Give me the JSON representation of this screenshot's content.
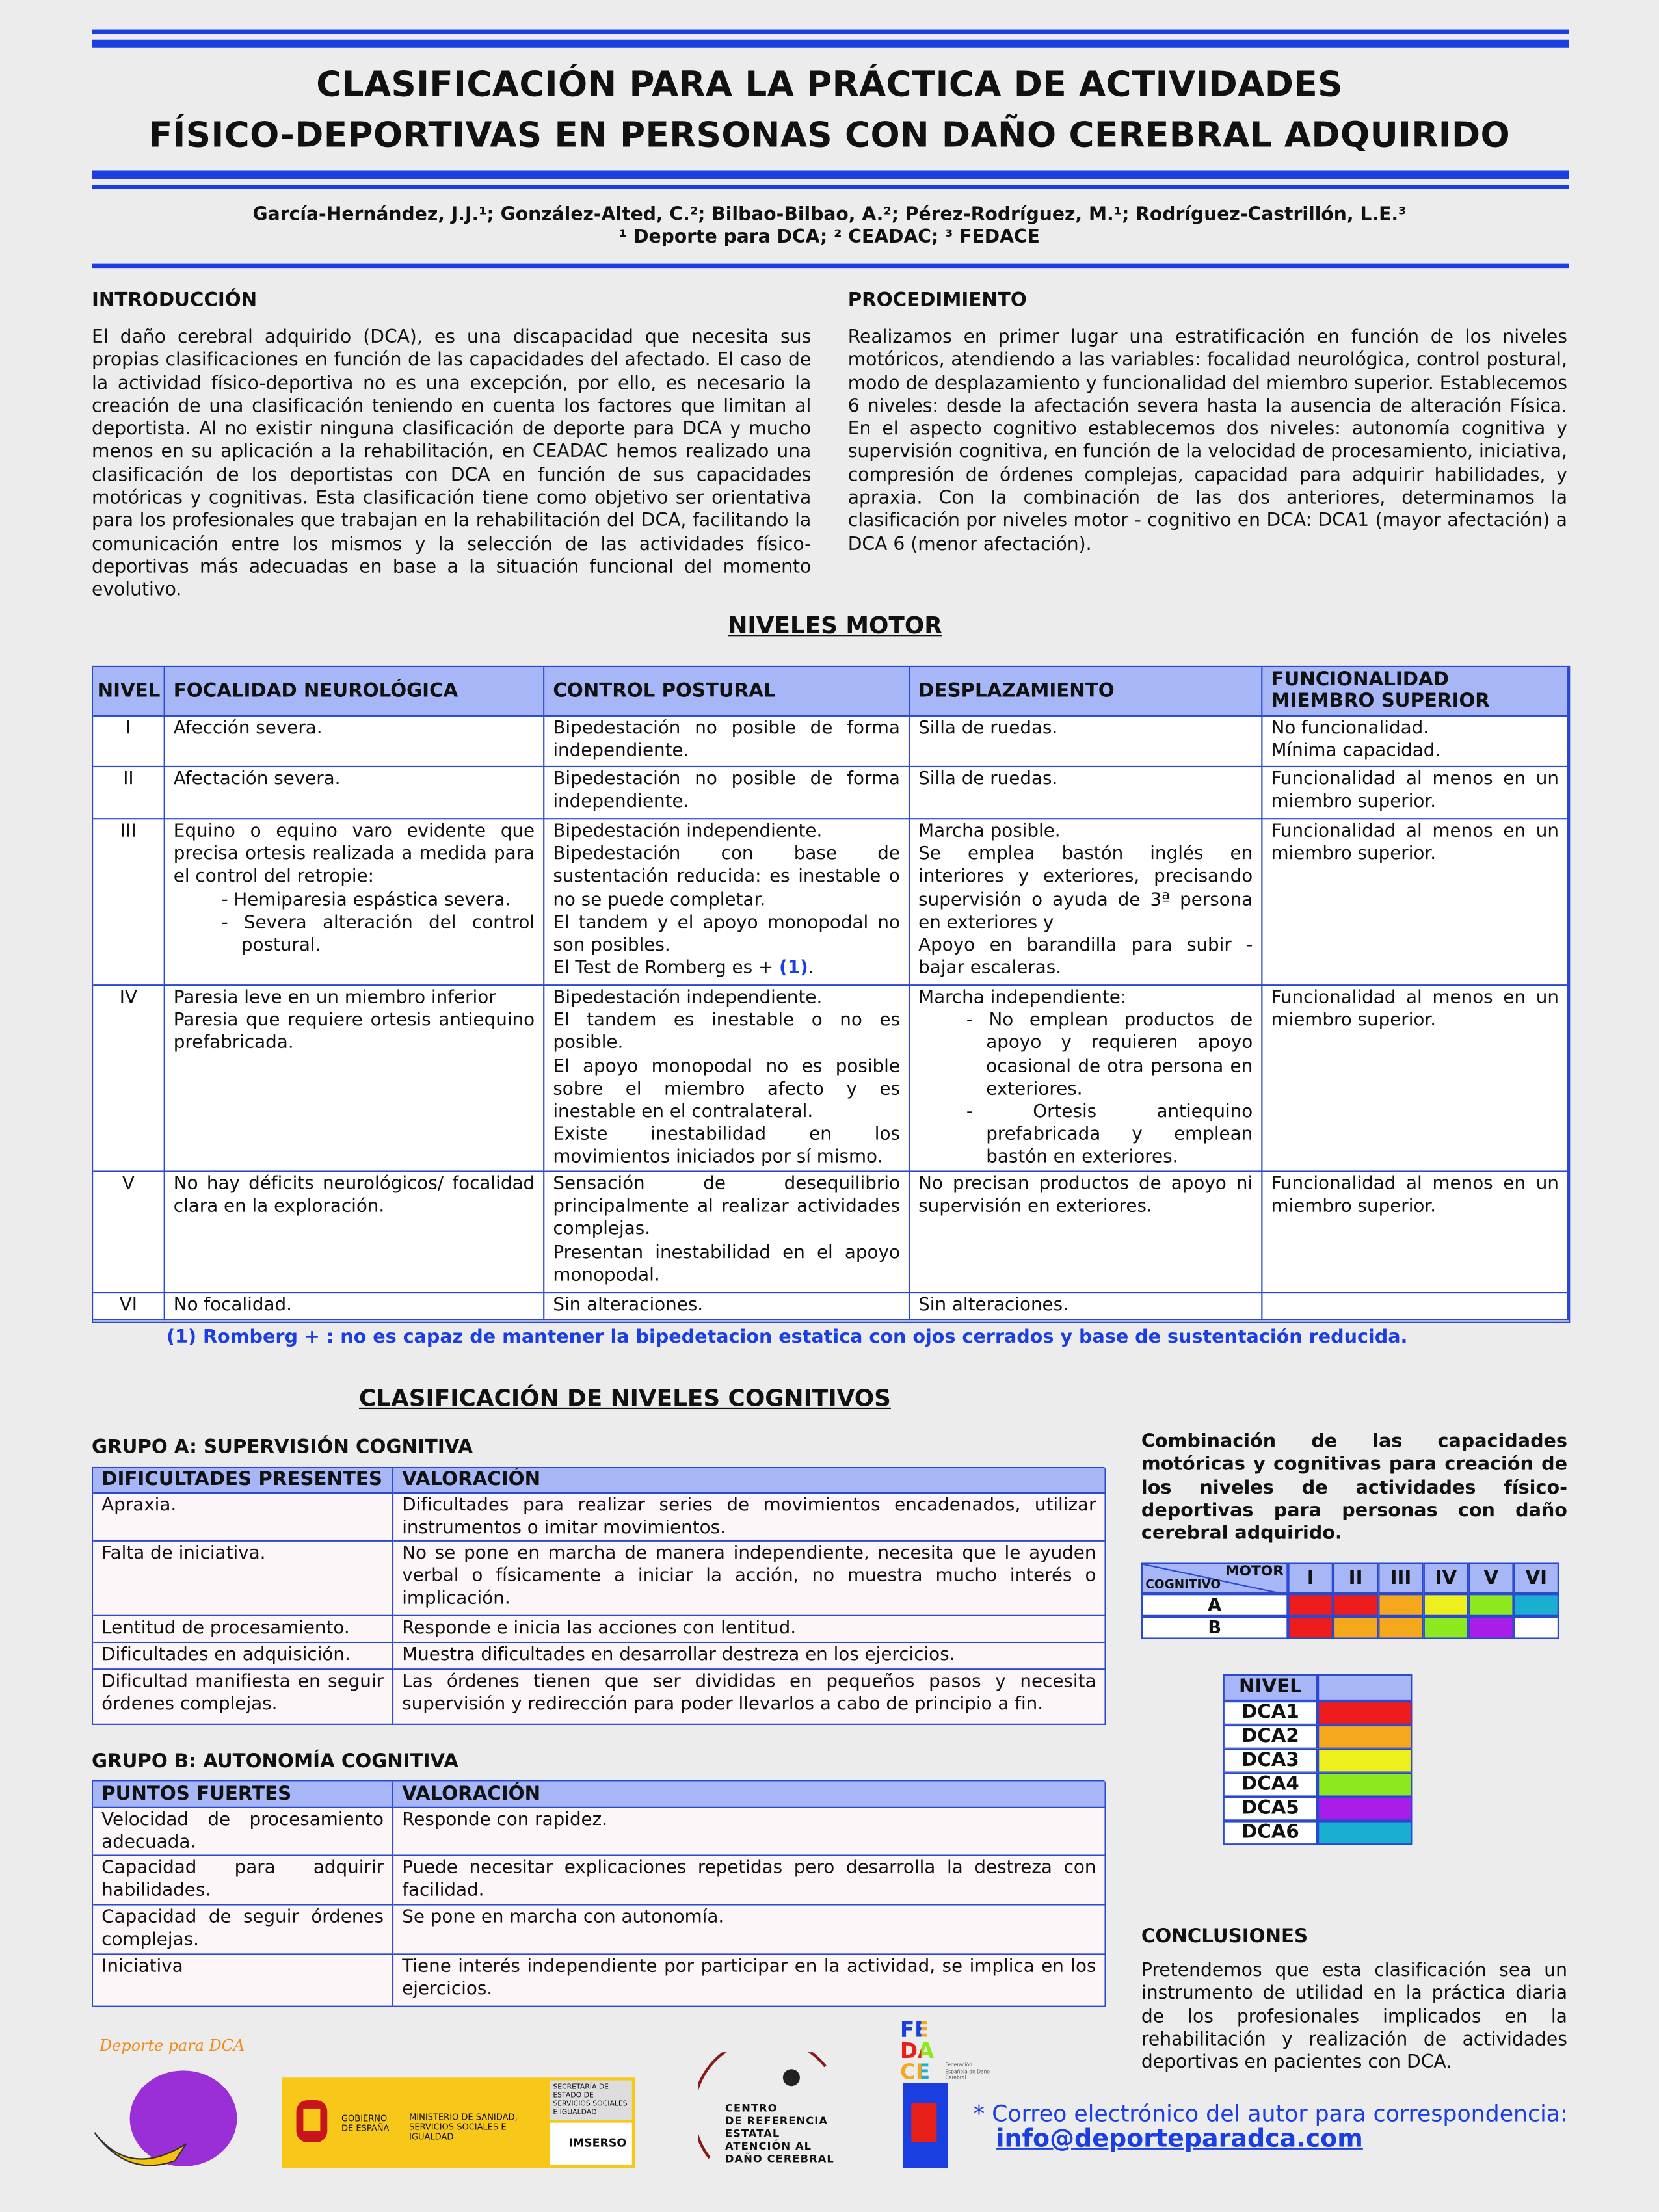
{
  "header": {
    "title_line1": "CLASIFICACIÓN PARA LA PRÁCTICA DE ACTIVIDADES",
    "title_line2": "FÍSICO-DEPORTIVAS EN PERSONAS CON DAÑO CEREBRAL ADQUIRIDO",
    "authors": "García-Hernández, J.J.¹; González-Alted, C.²; Bilbao-Bilbao, A.²; Pérez-Rodríguez, M.¹; Rodríguez-Castrillón, L.E.³",
    "affiliations": "¹ Deporte para DCA; ² CEADAC; ³ FEDACE"
  },
  "introduccion": {
    "heading": "INTRODUCCIÓN",
    "text": "El daño cerebral adquirido (DCA), es una discapacidad que necesita sus propias clasificaciones en función de las capacidades del afectado. El caso de la actividad físico-deportiva no es una excepción, por ello, es necesario la creación de una clasificación teniendo en cuenta los factores que limitan al deportista. Al no existir ninguna clasificación de deporte para DCA y mucho menos en su aplicación a la rehabilitación, en CEADAC hemos realizado una clasificación de los deportistas con DCA en función de sus capacidades motóricas y cognitivas. Esta clasificación tiene como objetivo ser orientativa para los profesionales que trabajan en la rehabilitación del DCA, facilitando la comunicación entre los mismos y la selección de las actividades físico-deportivas más adecuadas en base a la situación funcional del momento evolutivo."
  },
  "procedimiento": {
    "heading": "PROCEDIMIENTO",
    "text": "Realizamos en primer lugar una estratificación en función de los niveles motóricos, atendiendo a las variables: focalidad neurológica, control postural, modo de desplazamiento y funcionalidad del miembro superior. Establecemos 6 niveles: desde la afectación severa hasta la ausencia de alteración Física. En el aspecto cognitivo establecemos dos niveles: autonomía cognitiva y supervisión cognitiva, en función de la velocidad de procesamiento, iniciativa, compresión de órdenes complejas, capacidad para adquirir habilidades, y apraxia. Con la combinación de las dos anteriores, determinamos la clasificación por niveles motor - cognitivo en DCA: DCA1 (mayor afectación) a DCA 6 (menor afectación)."
  },
  "niveles_motor": {
    "heading": "NIVELES MOTOR",
    "columns": [
      "NIVEL",
      "FOCALIDAD NEUROLÓGICA",
      "CONTROL POSTURAL",
      "DESPLAZAMIENTO",
      "FUNCIONALIDAD MIEMBRO SUPERIOR"
    ],
    "rows": [
      {
        "nivel": "I",
        "cells": [
          [
            "Afección severa."
          ],
          [
            "Bipedestación no posible de forma independiente."
          ],
          [
            "Silla de ruedas."
          ],
          [
            "No funcionalidad.",
            "Mínima capacidad."
          ]
        ]
      },
      {
        "nivel": "II",
        "cells": [
          [
            "Afectación severa."
          ],
          [
            "Bipedestación no posible de forma independiente."
          ],
          [
            "Silla de ruedas."
          ],
          [
            "Funcionalidad al menos en un miembro superior."
          ]
        ]
      },
      {
        "nivel": "III",
        "cells": [
          [
            "Equino o equino varo evidente que precisa ortesis realizada a medida para el control del retropie:",
            {
              "list": [
                "- Hemiparesia espástica severa.",
                "- Severa alteración del control postural."
              ]
            }
          ],
          [
            "Bipedestación independiente.",
            "Bipedestación con base de sustentación reducida: es inestable o no se puede completar.",
            "El tandem y el apoyo monopodal no son posibles.",
            {
              "text": "El Test de Romberg es +",
              "note": "(1)",
              "end": "."
            }
          ],
          [
            "Marcha posible.",
            "Se emplea bastón inglés en interiores y exteriores, precisando supervisión o ayuda de 3ª persona en exteriores y",
            "Apoyo en barandilla para subir - bajar escaleras."
          ],
          [
            "Funcionalidad al menos en un miembro superior."
          ]
        ]
      },
      {
        "nivel": "IV",
        "cells": [
          [
            "Paresia leve en un miembro inferior",
            "Paresia que requiere ortesis antiequino prefabricada."
          ],
          [
            "Bipedestación independiente.",
            "El tandem es inestable o no es posible.",
            "El apoyo monopodal no es posible sobre el miembro afecto y es inestable en el contralateral.",
            "Existe inestabilidad en los movimientos iniciados por sí mismo."
          ],
          [
            "Marcha independiente:",
            {
              "list": [
                "- No emplean productos de apoyo y requieren apoyo ocasional de otra persona en exteriores.",
                "- Ortesis antiequino prefabricada y emplean bastón en exteriores."
              ]
            }
          ],
          [
            "Funcionalidad al menos en un miembro superior."
          ]
        ]
      },
      {
        "nivel": "V",
        "cells": [
          [
            "No hay déficits neurológicos/ focalidad clara en la exploración."
          ],
          [
            "Sensación de desequilibrio principalmente al realizar actividades complejas.",
            "Presentan inestabilidad en el apoyo monopodal."
          ],
          [
            "No precisan productos de apoyo ni supervisión en exteriores."
          ],
          [
            "Funcionalidad al menos en un miembro superior."
          ]
        ]
      },
      {
        "nivel": "VI",
        "cells": [
          [
            "No focalidad."
          ],
          [
            "Sin alteraciones."
          ],
          [
            "Sin alteraciones."
          ],
          []
        ]
      }
    ],
    "footnote": "(1) Romberg + : no es capaz de mantener la bipedetacion estatica con ojos cerrados y base de sustentación reducida."
  },
  "cognitivos": {
    "heading": "CLASIFICACIÓN DE NIVELES COGNITIVOS",
    "grupo_a": {
      "title": "GRUPO A: SUPERVISIÓN COGNITIVA",
      "columns": [
        "DIFICULTADES PRESENTES",
        "VALORACIÓN"
      ],
      "rows": [
        [
          "Apraxia.",
          "Dificultades para realizar series de movimientos encadenados, utilizar instrumentos o imitar movimientos."
        ],
        [
          "Falta de iniciativa.",
          "No se pone en marcha de manera independiente, necesita que le ayuden verbal o físicamente a iniciar la acción, no muestra mucho interés o implicación."
        ],
        [
          "Lentitud de procesamiento.",
          "Responde e inicia las acciones con lentitud."
        ],
        [
          "Dificultades en adquisición.",
          "Muestra dificultades en desarrollar destreza en los ejercicios."
        ],
        [
          "Dificultad manifiesta en seguir órdenes complejas.",
          "Las órdenes tienen que ser divididas en pequeños pasos y necesita supervisión y redirección para poder llevarlos a cabo de principio a fin."
        ]
      ]
    },
    "grupo_b": {
      "title": "GRUPO B:  AUTONOMÍA COGNITIVA",
      "columns": [
        "PUNTOS FUERTES",
        "VALORACIÓN"
      ],
      "rows": [
        [
          "Velocidad de procesamiento adecuada.",
          "Responde con rapidez."
        ],
        [
          "Capacidad para adquirir habilidades.",
          "Puede necesitar explicaciones repetidas pero desarrolla la destreza con facilidad."
        ],
        [
          "Capacidad de seguir órdenes complejas.",
          "Se pone en marcha con autonomía."
        ],
        [
          "Iniciativa",
          "Tiene interés independiente por participar en la actividad, se implica en los ejercicios."
        ]
      ]
    }
  },
  "combinacion": {
    "text": "Combinación de las capacidades motóricas y cognitivas para creación de los niveles de actividades físico-deportivas para personas con daño cerebral adquirido.",
    "corner_motor": "MOTOR",
    "corner_cognitivo": "COGNITIVO",
    "columns": [
      "I",
      "II",
      "III",
      "IV",
      "V",
      "VI"
    ],
    "rows": [
      {
        "label": "A",
        "colors": [
          "#ee1c1c",
          "#ee1c1c",
          "#f5a81c",
          "#eef01e",
          "#8ee81e",
          "#1aaed0"
        ]
      },
      {
        "label": "B",
        "colors": [
          "#ee1c1c",
          "#f5a81c",
          "#f5a81c",
          "#8ee81e",
          "#a81ee8",
          "#ffffff"
        ]
      }
    ]
  },
  "nivel_legend": {
    "header": "NIVEL",
    "items": [
      {
        "label": "DCA1",
        "color": "#ee1c1c"
      },
      {
        "label": "DCA2",
        "color": "#f5a81c"
      },
      {
        "label": "DCA3",
        "color": "#eef01e"
      },
      {
        "label": "DCA4",
        "color": "#8ee81e"
      },
      {
        "label": "DCA5",
        "color": "#a81ee8"
      },
      {
        "label": "DCA6",
        "color": "#1aaed0"
      }
    ]
  },
  "conclusiones": {
    "heading": "CONCLUSIONES",
    "text": "Pretendemos que esta clasificación sea un instrumento de utilidad en la práctica diaria de los profesionales implicados en la rehabilitación y realización de actividades deportivas en pacientes con DCA."
  },
  "footer": {
    "logo_deporte": "Deporte para DCA",
    "gobierno": "GOBIERNO DE ESPAÑA",
    "ministerio": "MINISTERIO DE SANIDAD, SERVICIOS SOCIALES E IGUALDAD",
    "secretaria": "SECRETARÍA DE ESTADO DE SERVICIOS SOCIALES E IGUALDAD",
    "imserso": "IMSERSO",
    "centro_lines": [
      "CENTRO",
      "DE REFERENCIA",
      "ESTATAL",
      "ATENCIÓN AL",
      "DAÑO CEREBRAL"
    ],
    "fedace_rows": [
      "FE",
      "DA",
      "CE"
    ],
    "fedace_name": "Federación Española de Daño Cerebral",
    "contact": "* Correo electrónico del autor para correspondencia:",
    "email": "info@deporteparadca.com"
  }
}
